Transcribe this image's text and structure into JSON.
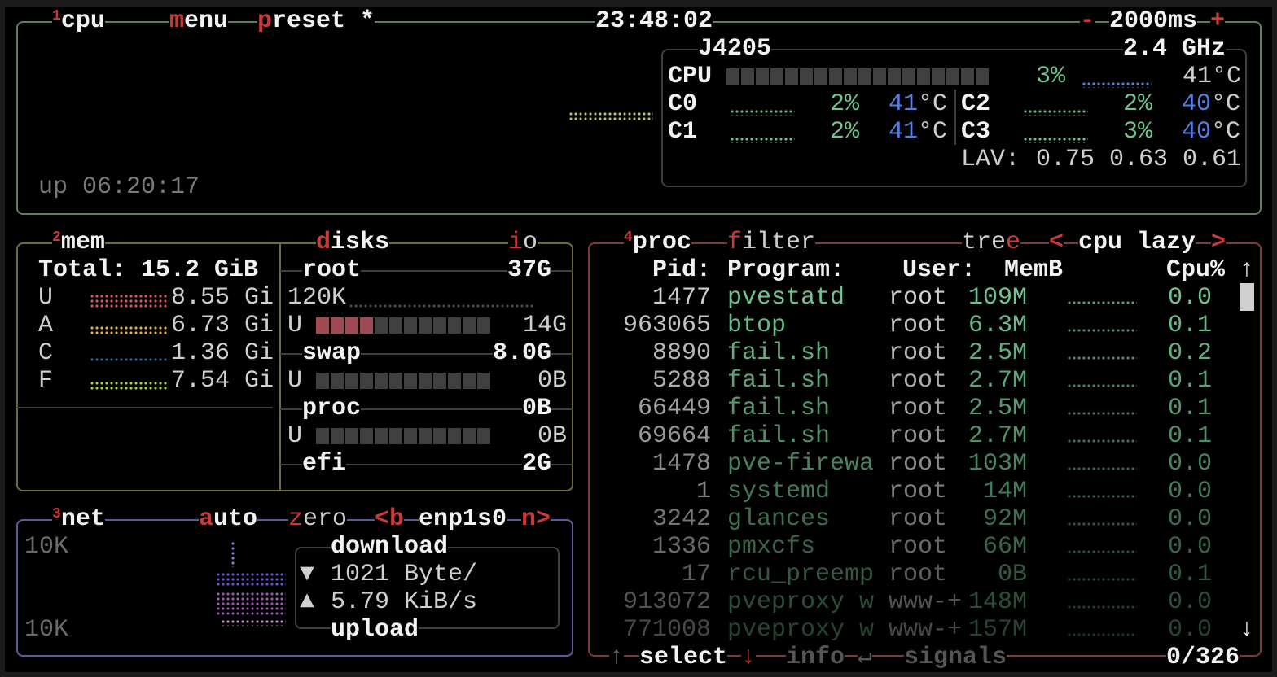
{
  "colors": {
    "cpu_box": "#5f7d62",
    "mem_box": "#6e6c3e",
    "net_box": "#5c5a9c",
    "proc_box": "#7d3b3b",
    "hotkey": "#c83a3a",
    "value_green": "#6fc48f",
    "temp_blue": "#5580e8"
  },
  "cpu": {
    "num": "1",
    "title": "cpu",
    "menu": {
      "key": "m",
      "rest": "enu"
    },
    "preset": {
      "key": "p",
      "rest": "reset *"
    },
    "clock": "23:48:02",
    "interval_minus": "-",
    "interval": "2000ms",
    "interval_plus": "+",
    "uptime": "up 06:20:17",
    "model": "J4205",
    "freq": "2.4 GHz",
    "total": {
      "label": "CPU",
      "pct": "3%",
      "temp": "41°C",
      "usage_percent": 3
    },
    "cores": [
      {
        "label": "C0",
        "pct": "2%",
        "temp": "41",
        "unit": "°C"
      },
      {
        "label": "C1",
        "pct": "2%",
        "temp": "41",
        "unit": "°C"
      },
      {
        "label": "C2",
        "pct": "2%",
        "temp": "40",
        "unit": "°C"
      },
      {
        "label": "C3",
        "pct": "3%",
        "temp": "40",
        "unit": "°C"
      }
    ],
    "lav_label": "LAV:",
    "lav": "0.75 0.63 0.61"
  },
  "mem": {
    "num": "2",
    "title": "mem",
    "total_label": "Total:",
    "total": "15.2 GiB",
    "items": [
      {
        "label": "U",
        "value": "8.55 Gi",
        "color": "#e05555"
      },
      {
        "label": "A",
        "value": "6.73 Gi",
        "color": "#e6b440"
      },
      {
        "label": "C",
        "value": "1.36 Gi",
        "color": "#2f6f96"
      },
      {
        "label": "F",
        "value": "7.54 Gi",
        "color": "#a6d64a"
      }
    ]
  },
  "disks": {
    "title": {
      "key": "d",
      "rest": "isks"
    },
    "io": {
      "key": "i",
      "rest": "o"
    },
    "entries": [
      {
        "name": "root",
        "size": "37G",
        "io": "120K",
        "used_label": "U",
        "used": "14G",
        "usage_blocks": 4
      },
      {
        "name": "swap",
        "size": "8.0G",
        "used_label": "U",
        "used": "0B",
        "usage_blocks": 0
      },
      {
        "name": "proc",
        "size": "0B",
        "used_label": "U",
        "used": "0B",
        "usage_blocks": 0
      },
      {
        "name": "efi",
        "size": "2G"
      }
    ]
  },
  "net": {
    "num": "3",
    "title": "net",
    "auto": {
      "key": "a",
      "rest": "uto"
    },
    "zero": {
      "key": "z",
      "rest": "ero"
    },
    "prev": "<b",
    "iface": "enp1s0",
    "next": "n>",
    "scale_top": "10K",
    "scale_bottom": "10K",
    "download_label": "download",
    "upload_label": "upload",
    "down_icon": "▼",
    "down": "1021 Byte/",
    "up_icon": "▲",
    "up": "5.79 KiB/s"
  },
  "proc": {
    "num": "4",
    "title": "proc",
    "filter": {
      "key": "f",
      "rest": "ilter"
    },
    "tree": {
      "rest": "tre",
      "key": "e"
    },
    "sort_prev": "<",
    "sort": "cpu lazy",
    "sort_next": ">",
    "headers": {
      "pid": "Pid:",
      "program": "Program:",
      "user": "User:",
      "mem": "MemB",
      "cpu": "Cpu%"
    },
    "scroll_up": "↑",
    "scroll_down": "↓",
    "rows": [
      {
        "pid": "1477",
        "program": "pvestatd",
        "user": "root",
        "mem": "109M",
        "cpu": "0.0"
      },
      {
        "pid": "963065",
        "program": "btop",
        "user": "root",
        "mem": "6.3M",
        "cpu": "0.1"
      },
      {
        "pid": "8890",
        "program": "fail.sh",
        "user": "root",
        "mem": "2.5M",
        "cpu": "0.2"
      },
      {
        "pid": "5288",
        "program": "fail.sh",
        "user": "root",
        "mem": "2.7M",
        "cpu": "0.1"
      },
      {
        "pid": "66449",
        "program": "fail.sh",
        "user": "root",
        "mem": "2.5M",
        "cpu": "0.1"
      },
      {
        "pid": "69664",
        "program": "fail.sh",
        "user": "root",
        "mem": "2.7M",
        "cpu": "0.1"
      },
      {
        "pid": "1478",
        "program": "pve-firewa",
        "user": "root",
        "mem": "103M",
        "cpu": "0.0"
      },
      {
        "pid": "1",
        "program": "systemd",
        "user": "root",
        "mem": "14M",
        "cpu": "0.0"
      },
      {
        "pid": "3242",
        "program": "glances",
        "user": "root",
        "mem": "92M",
        "cpu": "0.0"
      },
      {
        "pid": "1336",
        "program": "pmxcfs",
        "user": "root",
        "mem": "66M",
        "cpu": "0.0"
      },
      {
        "pid": "17",
        "program": "rcu_preemp",
        "user": "root",
        "mem": "0B",
        "cpu": "0.1"
      },
      {
        "pid": "913072",
        "program": "pveproxy w",
        "user": "www-+",
        "mem": "148M",
        "cpu": "0.0"
      },
      {
        "pid": "771008",
        "program": "pveproxy w",
        "user": "www-+",
        "mem": "157M",
        "cpu": "0.0"
      }
    ],
    "footer": {
      "up": "↑",
      "select": "select",
      "down": "↓",
      "info": "info",
      "enter": "↵",
      "signals": "signals",
      "count": "0/326"
    }
  }
}
